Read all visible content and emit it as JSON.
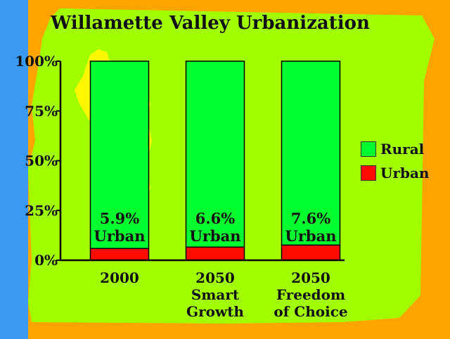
{
  "title": "Willamette Valley Urbanization",
  "colors": {
    "ocean": "#3a9af0",
    "land": "#a2ff00",
    "background": "#ffa400",
    "valley": "#fff700",
    "rural": "#00ff2e",
    "urban": "#ff0c00"
  },
  "chart_data": {
    "type": "bar",
    "stacked": true,
    "categories": [
      [
        "2000"
      ],
      [
        "2050",
        "Smart",
        "Growth"
      ],
      [
        "2050",
        "Freedom",
        "of Choice"
      ]
    ],
    "series": [
      {
        "name": "Urban",
        "values": [
          5.9,
          6.6,
          7.6
        ],
        "color": "#ff0c00"
      },
      {
        "name": "Rural",
        "values": [
          94.1,
          93.4,
          92.4
        ],
        "color": "#00ff2e"
      }
    ],
    "bar_labels": [
      [
        "5.9%",
        "Urban"
      ],
      [
        "6.6%",
        "Urban"
      ],
      [
        "7.6%",
        "Urban"
      ]
    ],
    "ylim": [
      0,
      100
    ],
    "yticks": [
      "0%",
      "25%",
      "50%",
      "75%",
      "100%"
    ],
    "legend": {
      "position": "right",
      "items": [
        "Rural",
        "Urban"
      ]
    }
  }
}
